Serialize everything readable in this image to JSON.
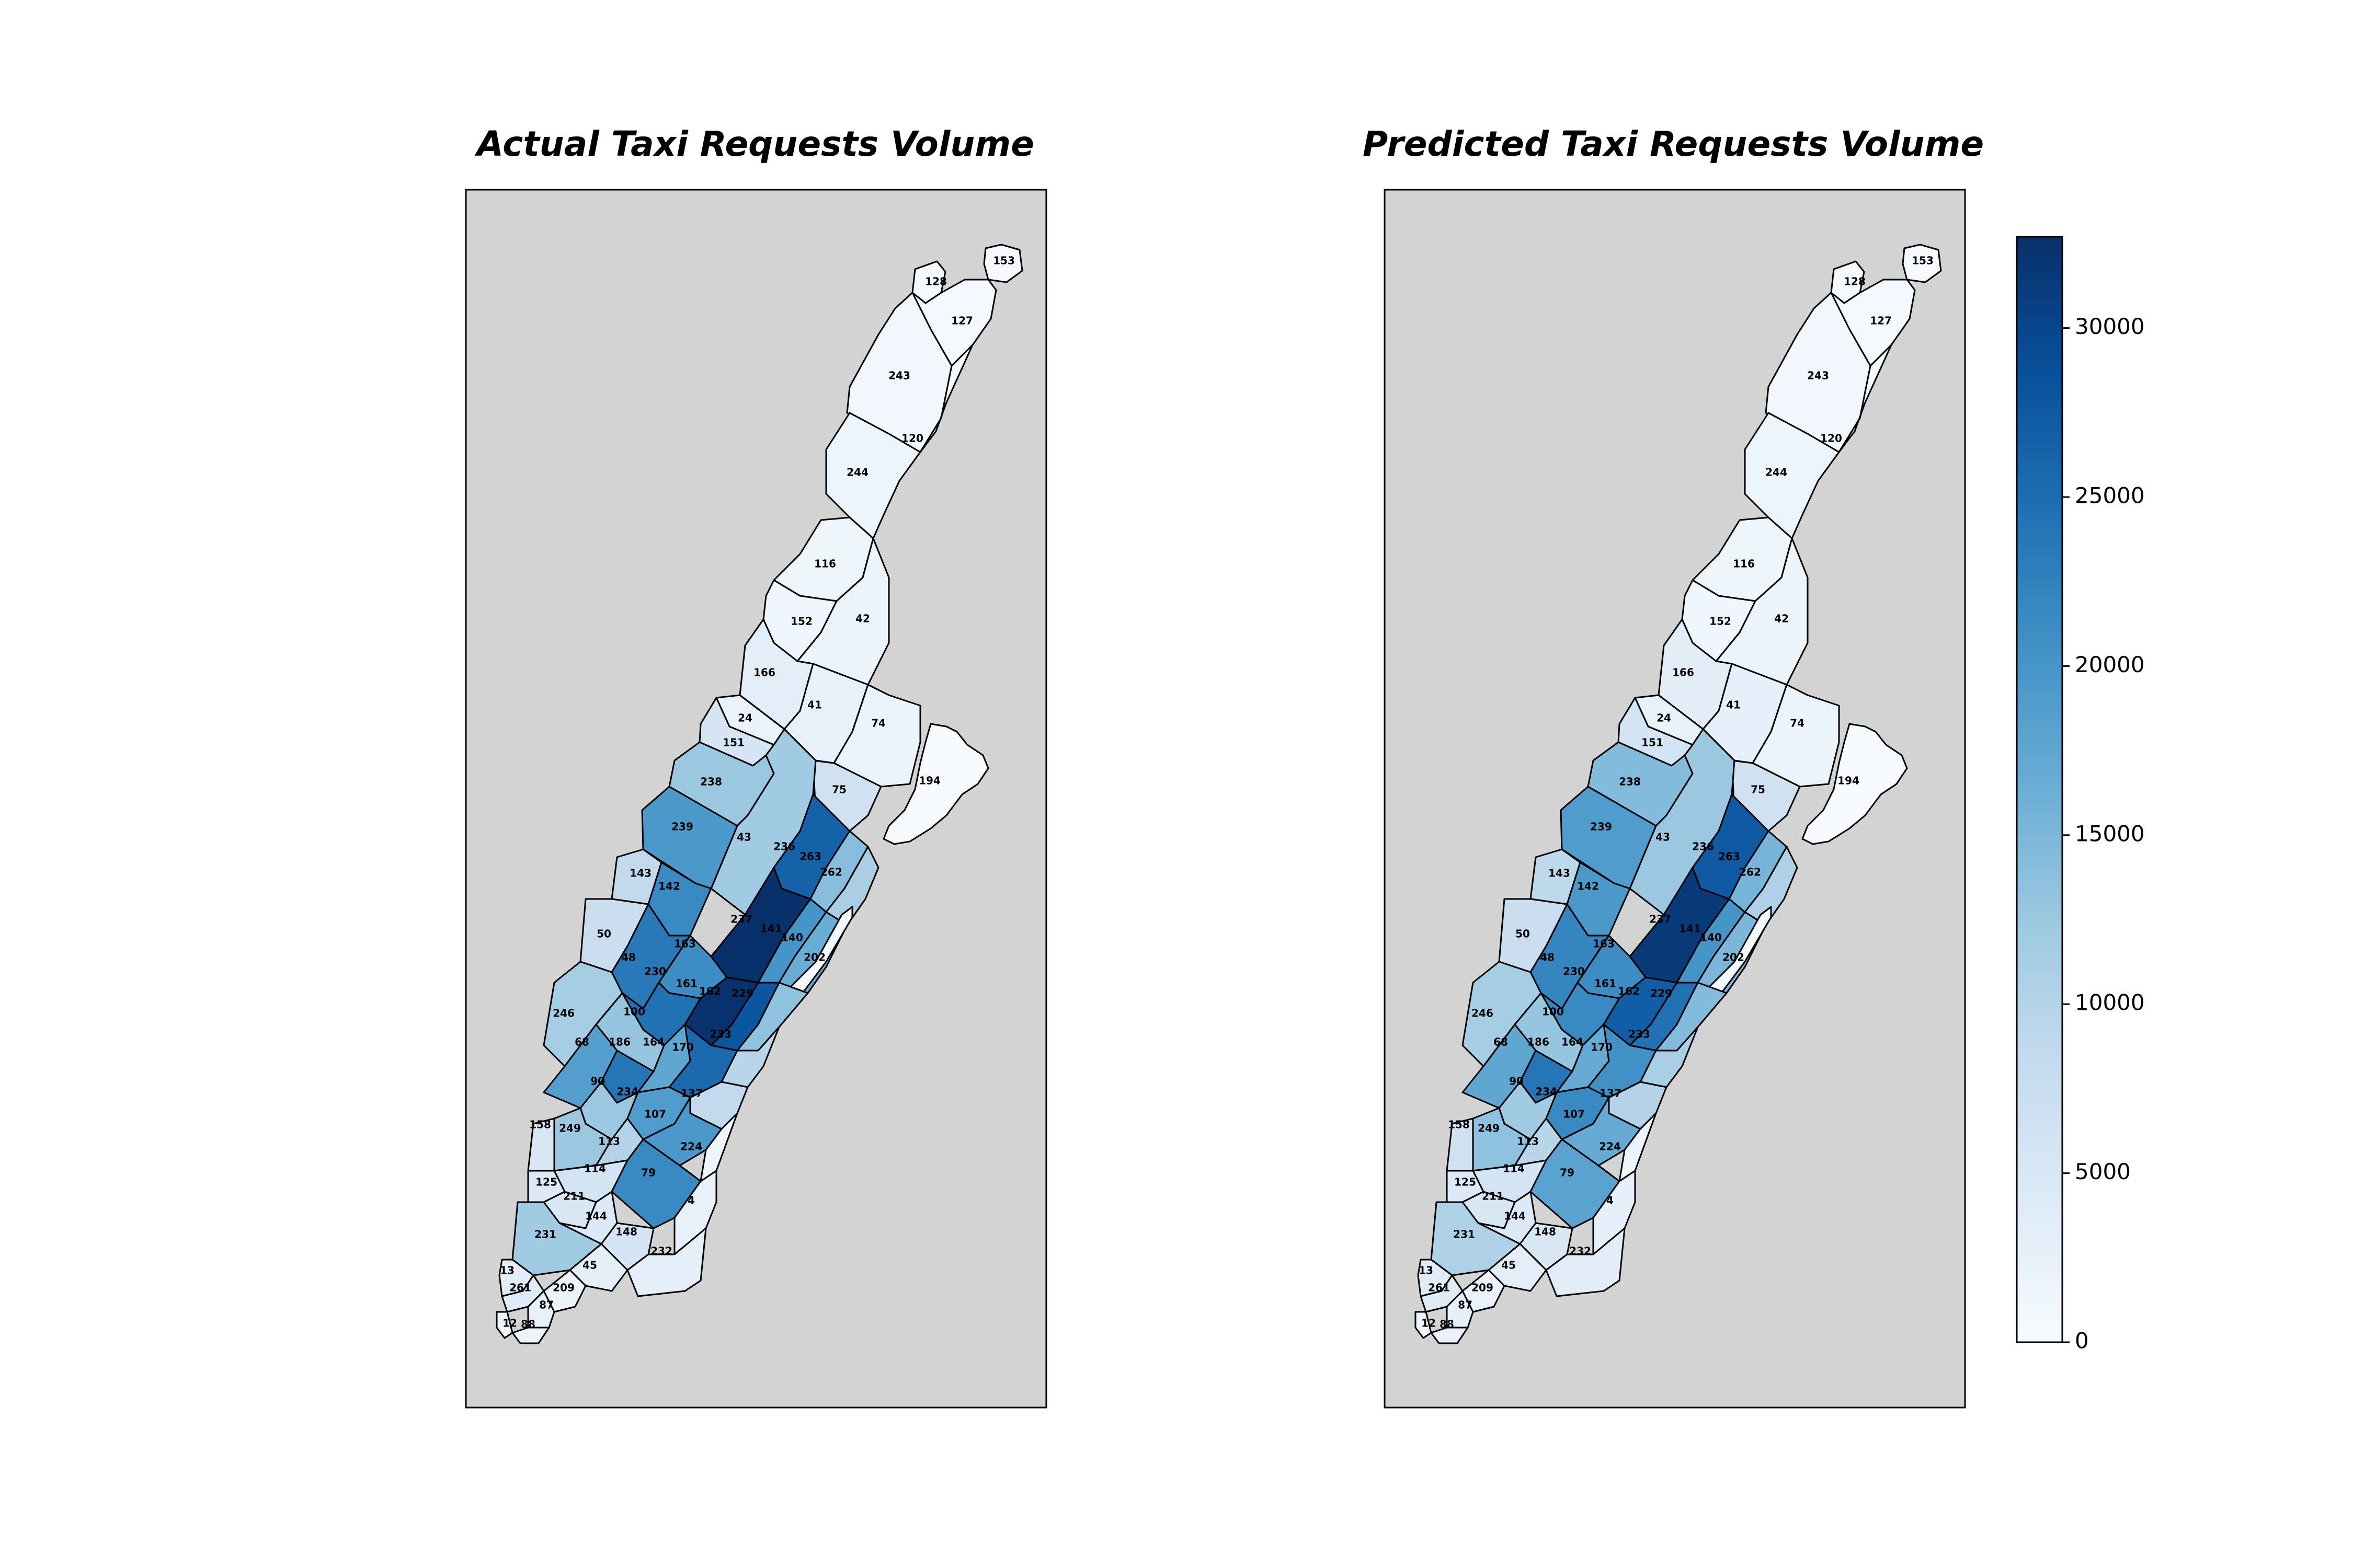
{
  "panels": [
    {
      "title": "Actual Taxi Requests Volume",
      "values": {
        "128": 300,
        "153": 150,
        "127": 600,
        "243": 900,
        "120": 100,
        "244": 1600,
        "116": 1400,
        "152": 1200,
        "42": 1800,
        "166": 3200,
        "41": 2600,
        "74": 1800,
        "24": 2200,
        "151": 5500,
        "238": 12500,
        "75": 6500,
        "194": 300,
        "239": 19500,
        "43": 12000,
        "236": 26500,
        "263": 14000,
        "262": 11000,
        "143": 8500,
        "142": 21500,
        "237": 33000,
        "141": 20000,
        "140": 16500,
        "202": 500,
        "50": 7500,
        "48": 23500,
        "163": 21000,
        "230": 24500,
        "161": 32500,
        "162": 28000,
        "229": 13500,
        "100": 13000,
        "246": 11500,
        "68": 18500,
        "186": 24000,
        "164": 17500,
        "170": 25500,
        "233": 9500,
        "90": 12500,
        "234": 19000,
        "137": 8500,
        "107": 19500,
        "158": 5000,
        "249": 12500,
        "113": 10000,
        "224": 1500,
        "114": 6000,
        "79": 21500,
        "125": 4500,
        "211": 5000,
        "144": 4500,
        "148": 5500,
        "4": 2500,
        "231": 12000,
        "45": 3000,
        "232": 3000,
        "13": 3500,
        "261": 4000,
        "209": 2000,
        "87": 2500,
        "12": 1500,
        "88": 2000
      }
    },
    {
      "title": "Predicted Taxi Requests Volume",
      "values": {
        "128": 300,
        "153": 150,
        "127": 600,
        "243": 900,
        "120": 100,
        "244": 1600,
        "116": 1400,
        "152": 1200,
        "42": 1800,
        "166": 3500,
        "41": 2800,
        "74": 2000,
        "24": 2400,
        "151": 6000,
        "238": 14500,
        "75": 6500,
        "194": 300,
        "239": 19000,
        "43": 12500,
        "236": 27500,
        "263": 15500,
        "262": 10500,
        "143": 9000,
        "142": 19500,
        "237": 31500,
        "141": 20000,
        "140": 15000,
        "202": 600,
        "50": 7500,
        "48": 22000,
        "163": 21000,
        "230": 21500,
        "161": 27000,
        "162": 24500,
        "229": 14500,
        "100": 13000,
        "246": 11500,
        "68": 17500,
        "186": 24000,
        "164": 17000,
        "170": 20500,
        "233": 11000,
        "90": 12000,
        "234": 21500,
        "137": 10000,
        "107": 17000,
        "158": 6500,
        "249": 13500,
        "113": 9500,
        "224": 1600,
        "114": 6000,
        "79": 18000,
        "125": 4500,
        "211": 5000,
        "144": 4500,
        "148": 5000,
        "4": 2800,
        "231": 10500,
        "45": 3200,
        "232": 3500,
        "13": 3800,
        "261": 4000,
        "209": 2200,
        "87": 2800,
        "12": 1700,
        "88": 2200
      }
    }
  ],
  "colorbar": {
    "min": 0,
    "max": 32700,
    "ticks": [
      "0",
      "5000",
      "10000",
      "15000",
      "20000",
      "25000",
      "30000"
    ],
    "colormap": "Blues"
  },
  "colors": {
    "background": "#d3d3d3",
    "low": "#f7fbff",
    "high": "#08306b"
  }
}
